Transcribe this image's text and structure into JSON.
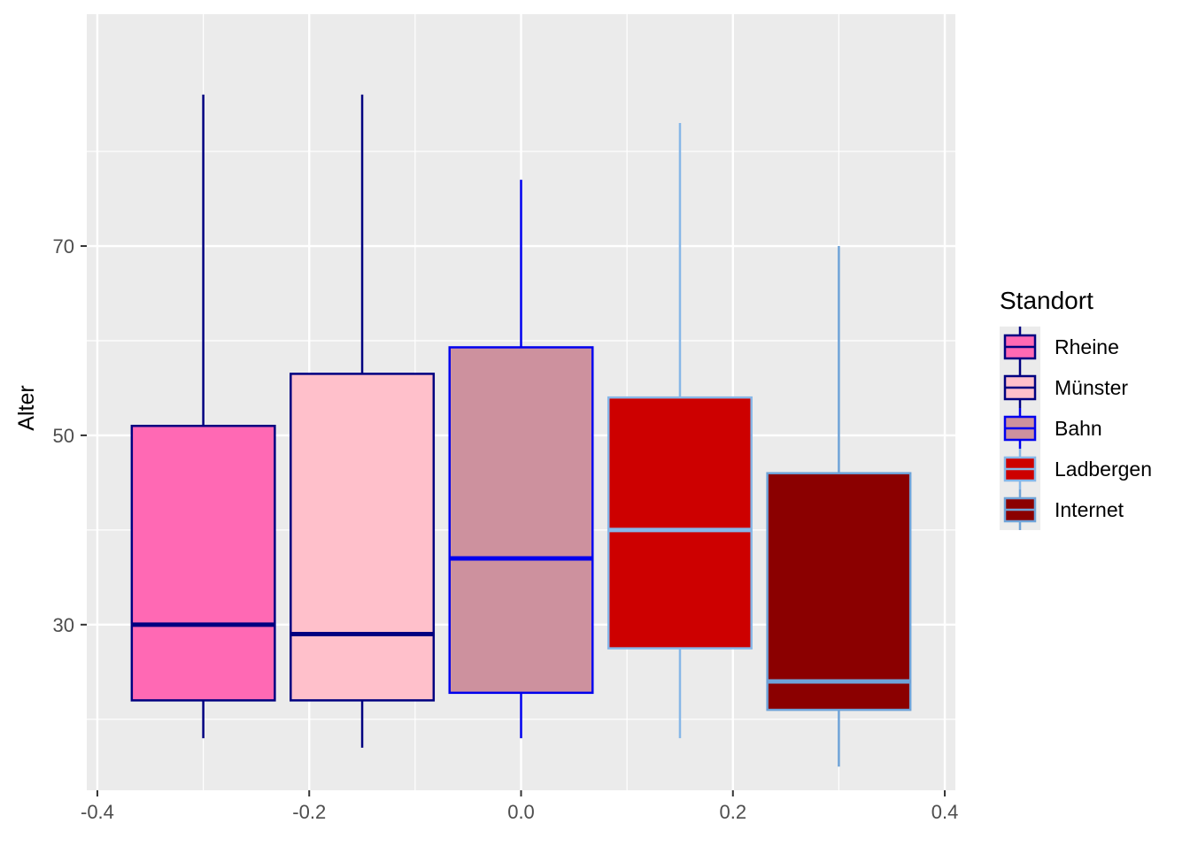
{
  "chart_data": {
    "type": "boxplot",
    "xlabel": "",
    "ylabel": "Alter",
    "xlim": [
      -0.41,
      0.41
    ],
    "ylim": [
      12.5,
      94.5
    ],
    "x_ticks": [
      -0.4,
      -0.2,
      0.0,
      0.2,
      0.4
    ],
    "x_tick_labels": [
      "-0.4",
      "-0.2",
      "0.0",
      "0.2",
      "0.4"
    ],
    "y_ticks": [
      30,
      50,
      70
    ],
    "y_tick_labels": [
      "30",
      "50",
      "70"
    ],
    "y_minor_ticks": [
      20,
      40,
      60,
      80
    ],
    "grid": true,
    "legend": {
      "title": "Standort",
      "position": "right"
    },
    "box_width": 0.135,
    "series": [
      {
        "name": "Rheine",
        "x": -0.3,
        "min": 18,
        "q1": 22,
        "median": 30,
        "q3": 51,
        "max": 86,
        "fill": "#FF69B4",
        "stroke": "#000080"
      },
      {
        "name": "Münster",
        "x": -0.15,
        "min": 17,
        "q1": 22,
        "median": 29,
        "q3": 56.5,
        "max": 86,
        "fill": "#FFC0CB",
        "stroke": "#000080"
      },
      {
        "name": "Bahn",
        "x": 0.0,
        "min": 18,
        "q1": 22.8,
        "median": 37,
        "q3": 59.3,
        "max": 77,
        "fill": "#CD919E",
        "stroke": "#0000EE"
      },
      {
        "name": "Ladbergen",
        "x": 0.15,
        "min": 18,
        "q1": 27.5,
        "median": 40,
        "q3": 54,
        "max": 83,
        "fill": "#CD0000",
        "stroke": "#87B7E8"
      },
      {
        "name": "Internet",
        "x": 0.3,
        "min": 15,
        "q1": 21,
        "median": 24,
        "q3": 46,
        "max": 70,
        "fill": "#8B0000",
        "stroke": "#6FA3D8"
      }
    ]
  }
}
